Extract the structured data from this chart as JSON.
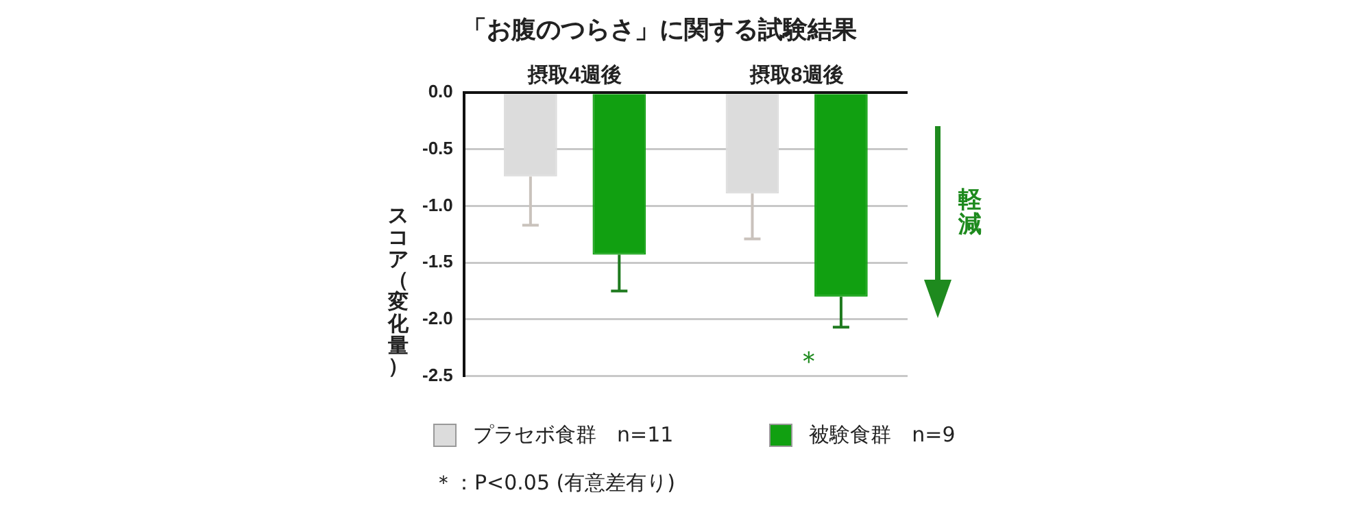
{
  "chart_data": {
    "type": "bar",
    "title": "「お腹のつらさ」に関する試験結果",
    "ylabel": "スコア（変化量）",
    "categories": [
      "摂取4週後",
      "摂取8週後"
    ],
    "series": [
      {
        "name": "プラセボ食群　n=11",
        "color": "#dcdcdc",
        "values": [
          -0.74,
          -0.89
        ],
        "errors": [
          [
            -1.17,
            -0.74
          ],
          [
            -1.29,
            -0.89
          ]
        ]
      },
      {
        "name": "被験食群　n=9",
        "color": "#11a011",
        "values": [
          -1.43,
          -1.8
        ],
        "errors": [
          [
            -1.75,
            -1.43
          ],
          [
            -2.07,
            -1.8
          ]
        ]
      }
    ],
    "ylim": [
      -2.5,
      0
    ],
    "yticks": [
      {
        "value": 0,
        "label": "0.0"
      },
      {
        "value": -0.5,
        "label": "-0.5"
      },
      {
        "value": -1,
        "label": "-1.0"
      },
      {
        "value": -1.5,
        "label": "-1.5"
      },
      {
        "value": -2,
        "label": "-2.0"
      },
      {
        "value": -2.5,
        "label": "-2.5"
      }
    ],
    "grid": "y",
    "legend": "bottom",
    "annotations": [
      "軽減",
      "＊",
      "＊：P<0.05 (有意差有り)"
    ]
  }
}
